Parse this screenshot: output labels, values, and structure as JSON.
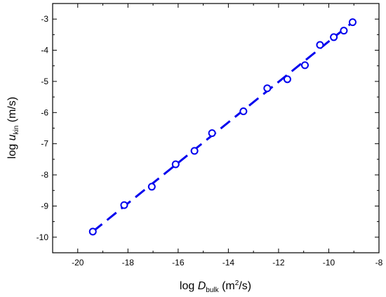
{
  "chart_data": {
    "type": "scatter",
    "xlabel": {
      "prefix": "log ",
      "var": "D",
      "sub": "bulk",
      "unit_pre": " (m",
      "sup": "2",
      "unit_post": "/s)"
    },
    "ylabel": {
      "prefix": "log ",
      "var": "u",
      "sub": "kin",
      "unit": " (m/s)"
    },
    "xlim": [
      -21,
      -8
    ],
    "ylim": [
      -10.5,
      -2.5
    ],
    "xticks": [
      -20,
      -18,
      -16,
      -14,
      -12,
      -10,
      -8
    ],
    "yticks": [
      -10,
      -9,
      -8,
      -7,
      -6,
      -5,
      -4,
      -3
    ],
    "xtick_labels": [
      "-20",
      "-18",
      "-16",
      "-14",
      "-12",
      "-10",
      "-8"
    ],
    "ytick_labels": [
      "-10",
      "-9",
      "-8",
      "-7",
      "-6",
      "-5",
      "-4",
      "-3"
    ],
    "series": [
      {
        "marker": "open-circle",
        "color": "#0000ee",
        "x": [
          -19.4,
          -18.15,
          -17.05,
          -16.1,
          -15.35,
          -14.65,
          -13.4,
          -12.45,
          -11.65,
          -10.95,
          -10.35,
          -9.8,
          -9.4,
          -9.05
        ],
        "y": [
          -9.82,
          -8.97,
          -8.38,
          -7.66,
          -7.23,
          -6.66,
          -5.96,
          -5.22,
          -4.93,
          -4.48,
          -3.83,
          -3.58,
          -3.37,
          -3.1
        ]
      }
    ],
    "fit_line": {
      "style": "dashed",
      "color": "#0000ee",
      "x": [
        -19.4,
        -9.05
      ],
      "y": [
        -9.82,
        -3.1
      ]
    },
    "grid": false,
    "legend": "none"
  }
}
